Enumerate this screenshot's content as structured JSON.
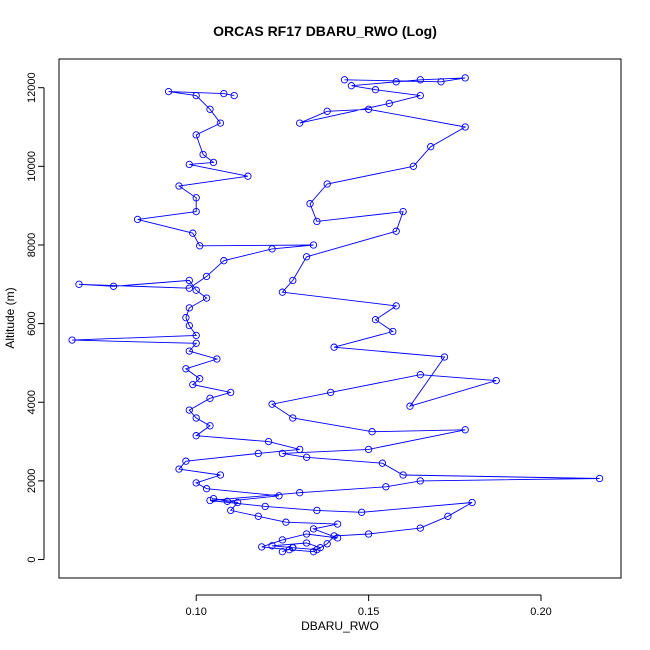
{
  "chart_data": {
    "type": "line",
    "title": "ORCAS RF17 DBARU_RWO (Log)",
    "xlabel": "DBARU_RWO",
    "ylabel": "Altitude (m)",
    "xlim": [
      0.06,
      0.22
    ],
    "ylim": [
      0,
      12500
    ],
    "x_ticks": [
      0.1,
      0.15,
      0.2
    ],
    "x_tick_labels": [
      "0.10",
      "0.15",
      "0.20"
    ],
    "y_ticks": [
      0,
      2000,
      4000,
      6000,
      8000,
      10000,
      12000
    ],
    "y_tick_labels": [
      "0",
      "2000",
      "4000",
      "6000",
      "8000",
      "10000",
      "12000"
    ],
    "grid": false,
    "marker": "open-circle",
    "series": [
      {
        "color": "#0000ff",
        "points": [
          [
            0.125,
            200
          ],
          [
            0.128,
            300
          ],
          [
            0.122,
            350
          ],
          [
            0.132,
            420
          ],
          [
            0.136,
            300
          ],
          [
            0.134,
            200
          ],
          [
            0.127,
            250
          ],
          [
            0.119,
            320
          ],
          [
            0.125,
            500
          ],
          [
            0.132,
            650
          ],
          [
            0.141,
            550
          ],
          [
            0.134,
            780
          ],
          [
            0.141,
            900
          ],
          [
            0.126,
            950
          ],
          [
            0.118,
            1100
          ],
          [
            0.11,
            1250
          ],
          [
            0.112,
            1450
          ],
          [
            0.105,
            1550
          ],
          [
            0.109,
            1480
          ],
          [
            0.124,
            1620
          ],
          [
            0.103,
            1800
          ],
          [
            0.1,
            1950
          ],
          [
            0.107,
            2150
          ],
          [
            0.095,
            2300
          ],
          [
            0.097,
            2500
          ],
          [
            0.118,
            2700
          ],
          [
            0.13,
            2800
          ],
          [
            0.121,
            3000
          ],
          [
            0.1,
            3150
          ],
          [
            0.104,
            3400
          ],
          [
            0.1,
            3600
          ],
          [
            0.098,
            3800
          ],
          [
            0.104,
            4100
          ],
          [
            0.11,
            4250
          ],
          [
            0.099,
            4450
          ],
          [
            0.101,
            4600
          ],
          [
            0.097,
            4850
          ],
          [
            0.106,
            5100
          ],
          [
            0.098,
            5300
          ],
          [
            0.1,
            5500
          ],
          [
            0.064,
            5580
          ],
          [
            0.1,
            5700
          ],
          [
            0.098,
            5950
          ],
          [
            0.097,
            6150
          ],
          [
            0.098,
            6400
          ],
          [
            0.103,
            6650
          ],
          [
            0.1,
            6850
          ],
          [
            0.098,
            7100
          ],
          [
            0.076,
            6950
          ],
          [
            0.066,
            7000
          ],
          [
            0.098,
            6900
          ],
          [
            0.103,
            7200
          ],
          [
            0.108,
            7600
          ],
          [
            0.122,
            7900
          ],
          [
            0.134,
            8000
          ],
          [
            0.101,
            7980
          ],
          [
            0.099,
            8300
          ],
          [
            0.083,
            8650
          ],
          [
            0.1,
            8850
          ],
          [
            0.1,
            9200
          ],
          [
            0.095,
            9500
          ],
          [
            0.115,
            9750
          ],
          [
            0.098,
            10050
          ],
          [
            0.105,
            10100
          ],
          [
            0.102,
            10300
          ],
          [
            0.1,
            10800
          ],
          [
            0.107,
            11100
          ],
          [
            0.104,
            11450
          ],
          [
            0.1,
            11800
          ],
          [
            0.092,
            11900
          ],
          [
            0.108,
            11850
          ],
          [
            0.111,
            11800
          ]
        ]
      },
      {
        "color": "#0000ff",
        "points": [
          [
            0.128,
            300
          ],
          [
            0.135,
            250
          ],
          [
            0.138,
            400
          ],
          [
            0.14,
            600
          ],
          [
            0.15,
            650
          ],
          [
            0.165,
            800
          ],
          [
            0.173,
            1100
          ],
          [
            0.18,
            1450
          ],
          [
            0.148,
            1200
          ],
          [
            0.135,
            1250
          ],
          [
            0.12,
            1350
          ],
          [
            0.104,
            1500
          ],
          [
            0.13,
            1700
          ],
          [
            0.155,
            1850
          ],
          [
            0.165,
            2000
          ],
          [
            0.217,
            2060
          ],
          [
            0.16,
            2150
          ],
          [
            0.154,
            2450
          ],
          [
            0.132,
            2600
          ],
          [
            0.125,
            2700
          ],
          [
            0.15,
            2800
          ],
          [
            0.178,
            3300
          ],
          [
            0.151,
            3250
          ],
          [
            0.128,
            3600
          ],
          [
            0.122,
            3950
          ],
          [
            0.139,
            4250
          ],
          [
            0.165,
            4700
          ],
          [
            0.187,
            4550
          ],
          [
            0.162,
            3900
          ],
          [
            0.172,
            5150
          ],
          [
            0.14,
            5400
          ],
          [
            0.157,
            5800
          ],
          [
            0.152,
            6100
          ],
          [
            0.158,
            6450
          ],
          [
            0.125,
            6800
          ],
          [
            0.128,
            7100
          ],
          [
            0.132,
            7700
          ],
          [
            0.158,
            8350
          ],
          [
            0.16,
            8850
          ],
          [
            0.135,
            8600
          ],
          [
            0.133,
            9050
          ],
          [
            0.138,
            9550
          ],
          [
            0.163,
            10000
          ],
          [
            0.168,
            10500
          ],
          [
            0.178,
            11000
          ],
          [
            0.15,
            11450
          ],
          [
            0.138,
            11400
          ],
          [
            0.13,
            11100
          ],
          [
            0.156,
            11600
          ],
          [
            0.165,
            11800
          ],
          [
            0.152,
            11950
          ],
          [
            0.145,
            12050
          ],
          [
            0.158,
            12150
          ],
          [
            0.165,
            12200
          ],
          [
            0.178,
            12250
          ],
          [
            0.171,
            12150
          ],
          [
            0.143,
            12200
          ]
        ]
      }
    ]
  }
}
